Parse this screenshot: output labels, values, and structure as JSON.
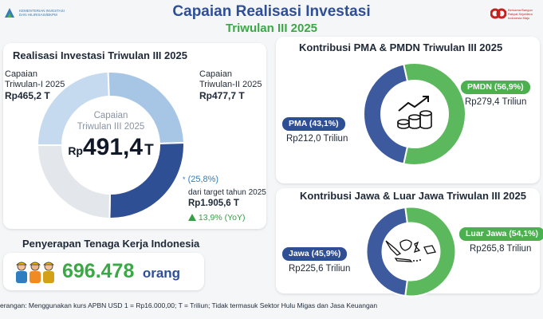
{
  "header": {
    "title": "Capaian Realisasi Investasi",
    "subtitle": "Triwulan III 2025",
    "logo_left_lines": [
      "KEMENTERIAN INVESTASI",
      "DAN HILIRISASI/BKPM"
    ],
    "logo_right_lines": [
      "Bersama Bangun",
      "Rakyat Sejahtera",
      "Indonesia Maju"
    ]
  },
  "realisasi": {
    "title": "Realisasi Investasi Triwulan III 2025",
    "tw1_label_1": "Capaian",
    "tw1_label_2": "Triwulan-I 2025",
    "tw1_value": "Rp465,2 T",
    "tw2_label_1": "Capaian",
    "tw2_label_2": "Triwulan-II 2025",
    "tw2_value": "Rp477,7 T",
    "center_label_1": "Capaian",
    "center_label_2": "Triwulan III 2025",
    "center_currency": "Rp",
    "center_value": "491,4",
    "center_unit": "T",
    "target_percent": "(25,8%)",
    "target_label": "dari target tahun 2025",
    "target_value": "Rp1.905,6 T",
    "yoy": "13,9% (YoY)",
    "colors": {
      "tw1": "#c5d9ef",
      "tw2": "#a7c6e6",
      "tw3": "#2f4f95",
      "remaining": "#e3e6ea"
    }
  },
  "tenaga_kerja": {
    "title": "Penyerapan Tenaga Kerja Indonesia",
    "value": "696.478",
    "unit": "orang"
  },
  "pma_pmdn": {
    "title": "Kontribusi PMA & PMDN Triwulan III 2025",
    "pma_label": "PMA (43,1%)",
    "pma_value": "Rp212,0 Triliun",
    "pmdn_label": "PMDN (56,9%)",
    "pmdn_value": "Rp279,4 Triliun"
  },
  "jawa": {
    "title": "Kontribusi Jawa & Luar Jawa Triwulan III 2025",
    "jawa_label": "Jawa (45,9%)",
    "jawa_value": "Rp225,6 Triliun",
    "luar_label": "Luar Jawa (54,1%)",
    "luar_value": "Rp265,8 Triliun"
  },
  "footer": {
    "text": "erangan: Menggunakan kurs APBN USD 1 = Rp16.000,00; T = Triliun; Tidak termasuk Sektor Hulu Migas dan Jasa Keuangan"
  },
  "chart_data": [
    {
      "type": "pie",
      "title": "Realisasi Investasi Triwulan III 2025",
      "unit": "Triliun Rp",
      "slices": [
        {
          "label": "Triwulan-I 2025",
          "value": 465.2
        },
        {
          "label": "Triwulan-II 2025",
          "value": 477.7
        },
        {
          "label": "Triwulan III 2025",
          "value": 491.4
        }
      ],
      "target": 1905.6,
      "target_percent": 25.8,
      "yoy_percent": 13.9
    },
    {
      "type": "pie",
      "title": "Kontribusi PMA & PMDN Triwulan III 2025",
      "unit": "Triliun Rp",
      "slices": [
        {
          "label": "PMA",
          "value": 212.0,
          "percent": 43.1
        },
        {
          "label": "PMDN",
          "value": 279.4,
          "percent": 56.9
        }
      ]
    },
    {
      "type": "pie",
      "title": "Kontribusi Jawa & Luar Jawa Triwulan III 2025",
      "unit": "Triliun Rp",
      "slices": [
        {
          "label": "Jawa",
          "value": 225.6,
          "percent": 45.9
        },
        {
          "label": "Luar Jawa",
          "value": 265.8,
          "percent": 54.1
        }
      ]
    }
  ]
}
